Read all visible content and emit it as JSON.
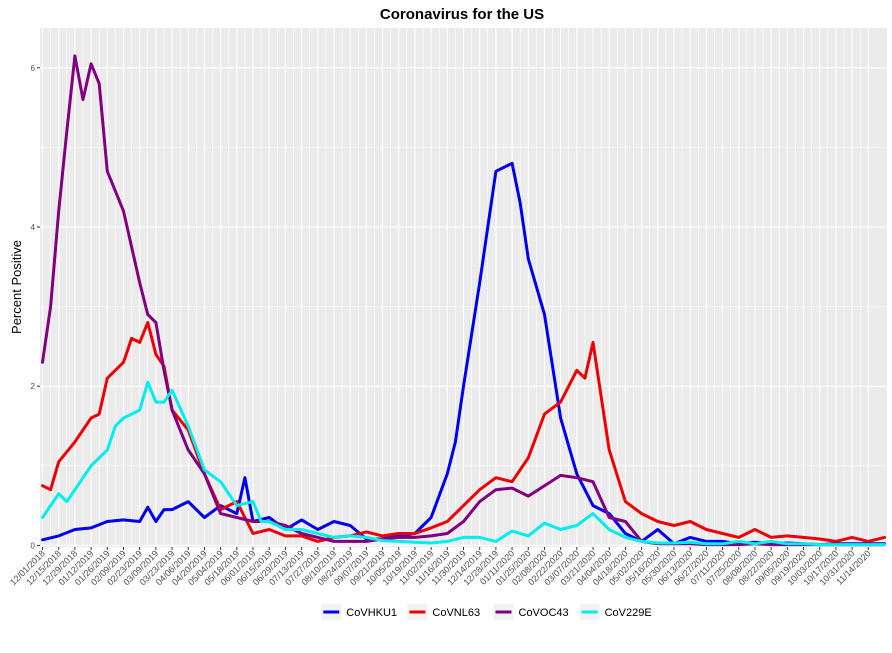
{
  "chart_data": {
    "type": "line",
    "title": "Coronavirus for the US",
    "xlabel": "",
    "ylabel": "Percent Positive",
    "ylim": [
      0,
      6.2
    ],
    "y_ticks": [
      0,
      2,
      4,
      6
    ],
    "x_start": "12/01/2018",
    "x_end": "11/28/2020",
    "x_ticks": [
      "12/01/2018",
      "12/15/2018",
      "12/29/2018",
      "01/12/2019",
      "01/26/2019",
      "02/09/2019",
      "02/23/2019",
      "03/09/2019",
      "03/23/2019",
      "04/06/2019",
      "04/20/2019",
      "05/04/2019",
      "05/18/2019",
      "06/01/2019",
      "06/15/2019",
      "06/29/2019",
      "07/13/2019",
      "07/27/2019",
      "08/10/2019",
      "08/24/2019",
      "09/07/2019",
      "09/21/2019",
      "10/05/2019",
      "10/19/2019",
      "11/02/2019",
      "11/16/2019",
      "11/30/2019",
      "12/14/2019",
      "12/28/2019",
      "01/11/2020",
      "01/25/2020",
      "02/08/2020",
      "02/22/2020",
      "03/07/2020",
      "03/21/2020",
      "04/04/2020",
      "04/18/2020",
      "05/02/2020",
      "05/16/2020",
      "05/30/2020",
      "06/13/2020",
      "06/27/2020",
      "07/11/2020",
      "07/25/2020",
      "08/08/2020",
      "08/22/2020",
      "09/05/2020",
      "09/19/2020",
      "10/03/2020",
      "10/17/2020",
      "10/31/2020",
      "11/14/2020"
    ],
    "grid": true,
    "legend_position": "bottom",
    "series": [
      {
        "name": "CoVHKU1",
        "color": "#0000ee",
        "points": [
          [
            "12/01/2018",
            0.07
          ],
          [
            "12/15/2018",
            0.12
          ],
          [
            "12/29/2018",
            0.2
          ],
          [
            "01/12/2019",
            0.22
          ],
          [
            "01/26/2019",
            0.3
          ],
          [
            "02/09/2019",
            0.32
          ],
          [
            "02/23/2019",
            0.3
          ],
          [
            "03/02/2019",
            0.48
          ],
          [
            "03/09/2019",
            0.3
          ],
          [
            "03/16/2019",
            0.45
          ],
          [
            "03/23/2019",
            0.45
          ],
          [
            "04/06/2019",
            0.55
          ],
          [
            "04/20/2019",
            0.35
          ],
          [
            "05/04/2019",
            0.5
          ],
          [
            "05/18/2019",
            0.4
          ],
          [
            "05/25/2019",
            0.85
          ],
          [
            "06/01/2019",
            0.3
          ],
          [
            "06/15/2019",
            0.35
          ],
          [
            "06/29/2019",
            0.2
          ],
          [
            "07/13/2019",
            0.32
          ],
          [
            "07/27/2019",
            0.2
          ],
          [
            "08/10/2019",
            0.3
          ],
          [
            "08/24/2019",
            0.25
          ],
          [
            "09/07/2019",
            0.08
          ],
          [
            "09/21/2019",
            0.08
          ],
          [
            "10/05/2019",
            0.12
          ],
          [
            "10/19/2019",
            0.15
          ],
          [
            "11/02/2019",
            0.35
          ],
          [
            "11/16/2019",
            0.9
          ],
          [
            "11/23/2019",
            1.3
          ],
          [
            "11/30/2019",
            2.0
          ],
          [
            "12/14/2019",
            3.3
          ],
          [
            "12/28/2019",
            4.7
          ],
          [
            "01/11/2020",
            4.8
          ],
          [
            "01/18/2020",
            4.3
          ],
          [
            "01/25/2020",
            3.6
          ],
          [
            "02/08/2020",
            2.9
          ],
          [
            "02/22/2020",
            1.6
          ],
          [
            "03/07/2020",
            0.9
          ],
          [
            "03/21/2020",
            0.5
          ],
          [
            "04/04/2020",
            0.4
          ],
          [
            "04/18/2020",
            0.15
          ],
          [
            "05/02/2020",
            0.05
          ],
          [
            "05/16/2020",
            0.2
          ],
          [
            "05/30/2020",
            0.02
          ],
          [
            "06/13/2020",
            0.1
          ],
          [
            "06/27/2020",
            0.05
          ],
          [
            "07/11/2020",
            0.05
          ],
          [
            "07/25/2020",
            0.02
          ],
          [
            "08/08/2020",
            0.04
          ],
          [
            "08/22/2020",
            0.02
          ],
          [
            "09/05/2020",
            0.03
          ],
          [
            "09/19/2020",
            0.02
          ],
          [
            "10/03/2020",
            0.01
          ],
          [
            "10/17/2020",
            0.02
          ],
          [
            "10/31/2020",
            0.02
          ],
          [
            "11/14/2020",
            0.02
          ],
          [
            "11/28/2020",
            0.02
          ]
        ]
      },
      {
        "name": "CoVNL63",
        "color": "#ee0000",
        "points": [
          [
            "12/01/2018",
            0.75
          ],
          [
            "12/08/2018",
            0.7
          ],
          [
            "12/15/2018",
            1.05
          ],
          [
            "12/29/2018",
            1.3
          ],
          [
            "01/12/2019",
            1.6
          ],
          [
            "01/19/2019",
            1.65
          ],
          [
            "01/26/2019",
            2.1
          ],
          [
            "02/09/2019",
            2.3
          ],
          [
            "02/16/2019",
            2.6
          ],
          [
            "02/23/2019",
            2.55
          ],
          [
            "03/02/2019",
            2.8
          ],
          [
            "03/09/2019",
            2.4
          ],
          [
            "03/16/2019",
            2.25
          ],
          [
            "03/23/2019",
            1.7
          ],
          [
            "04/06/2019",
            1.45
          ],
          [
            "04/20/2019",
            0.9
          ],
          [
            "05/04/2019",
            0.45
          ],
          [
            "05/18/2019",
            0.55
          ],
          [
            "06/01/2019",
            0.15
          ],
          [
            "06/15/2019",
            0.2
          ],
          [
            "06/29/2019",
            0.12
          ],
          [
            "07/13/2019",
            0.12
          ],
          [
            "07/27/2019",
            0.05
          ],
          [
            "08/10/2019",
            0.1
          ],
          [
            "08/24/2019",
            0.12
          ],
          [
            "09/07/2019",
            0.17
          ],
          [
            "09/21/2019",
            0.12
          ],
          [
            "10/05/2019",
            0.15
          ],
          [
            "10/19/2019",
            0.15
          ],
          [
            "11/02/2019",
            0.22
          ],
          [
            "11/16/2019",
            0.3
          ],
          [
            "11/30/2019",
            0.5
          ],
          [
            "12/14/2019",
            0.7
          ],
          [
            "12/28/2019",
            0.85
          ],
          [
            "01/11/2020",
            0.8
          ],
          [
            "01/25/2020",
            1.1
          ],
          [
            "02/08/2020",
            1.65
          ],
          [
            "02/22/2020",
            1.8
          ],
          [
            "03/07/2020",
            2.2
          ],
          [
            "03/14/2020",
            2.1
          ],
          [
            "03/21/2020",
            2.55
          ],
          [
            "04/04/2020",
            1.2
          ],
          [
            "04/18/2020",
            0.55
          ],
          [
            "05/02/2020",
            0.4
          ],
          [
            "05/16/2020",
            0.3
          ],
          [
            "05/30/2020",
            0.25
          ],
          [
            "06/13/2020",
            0.3
          ],
          [
            "06/27/2020",
            0.2
          ],
          [
            "07/11/2020",
            0.15
          ],
          [
            "07/25/2020",
            0.1
          ],
          [
            "08/08/2020",
            0.2
          ],
          [
            "08/22/2020",
            0.1
          ],
          [
            "09/05/2020",
            0.12
          ],
          [
            "09/19/2020",
            0.1
          ],
          [
            "10/03/2020",
            0.08
          ],
          [
            "10/17/2020",
            0.05
          ],
          [
            "10/31/2020",
            0.1
          ],
          [
            "11/14/2020",
            0.05
          ],
          [
            "11/28/2020",
            0.1
          ]
        ]
      },
      {
        "name": "CoVOC43",
        "color": "#800080",
        "points": [
          [
            "12/01/2018",
            2.3
          ],
          [
            "12/08/2018",
            3.0
          ],
          [
            "12/15/2018",
            4.2
          ],
          [
            "12/22/2018",
            5.2
          ],
          [
            "12/29/2018",
            6.15
          ],
          [
            "01/05/2019",
            5.6
          ],
          [
            "01/12/2019",
            6.05
          ],
          [
            "01/19/2019",
            5.8
          ],
          [
            "01/26/2019",
            4.7
          ],
          [
            "02/09/2019",
            4.2
          ],
          [
            "02/23/2019",
            3.3
          ],
          [
            "03/02/2019",
            2.9
          ],
          [
            "03/09/2019",
            2.8
          ],
          [
            "03/16/2019",
            2.2
          ],
          [
            "03/23/2019",
            1.7
          ],
          [
            "04/06/2019",
            1.2
          ],
          [
            "04/20/2019",
            0.9
          ],
          [
            "05/04/2019",
            0.4
          ],
          [
            "05/18/2019",
            0.35
          ],
          [
            "06/01/2019",
            0.3
          ],
          [
            "06/15/2019",
            0.3
          ],
          [
            "06/29/2019",
            0.25
          ],
          [
            "07/13/2019",
            0.15
          ],
          [
            "07/27/2019",
            0.1
          ],
          [
            "08/10/2019",
            0.05
          ],
          [
            "08/24/2019",
            0.05
          ],
          [
            "09/07/2019",
            0.05
          ],
          [
            "09/21/2019",
            0.08
          ],
          [
            "10/05/2019",
            0.1
          ],
          [
            "10/19/2019",
            0.1
          ],
          [
            "11/02/2019",
            0.12
          ],
          [
            "11/16/2019",
            0.15
          ],
          [
            "11/30/2019",
            0.3
          ],
          [
            "12/14/2019",
            0.55
          ],
          [
            "12/28/2019",
            0.7
          ],
          [
            "01/11/2020",
            0.72
          ],
          [
            "01/25/2020",
            0.62
          ],
          [
            "02/08/2020",
            0.75
          ],
          [
            "02/22/2020",
            0.88
          ],
          [
            "03/07/2020",
            0.85
          ],
          [
            "03/21/2020",
            0.8
          ],
          [
            "04/04/2020",
            0.35
          ],
          [
            "04/18/2020",
            0.3
          ],
          [
            "05/02/2020",
            0.05
          ],
          [
            "05/16/2020",
            0.02
          ],
          [
            "05/30/2020",
            0.02
          ],
          [
            "06/13/2020",
            0.02
          ],
          [
            "06/27/2020",
            0.01
          ],
          [
            "07/11/2020",
            0.01
          ],
          [
            "07/25/2020",
            0.01
          ],
          [
            "08/08/2020",
            0.02
          ],
          [
            "08/22/2020",
            0.01
          ],
          [
            "09/05/2020",
            0.01
          ],
          [
            "09/19/2020",
            0.01
          ],
          [
            "10/03/2020",
            0.01
          ],
          [
            "10/17/2020",
            0.01
          ],
          [
            "10/31/2020",
            0.01
          ],
          [
            "11/14/2020",
            0.01
          ],
          [
            "11/28/2020",
            0.01
          ]
        ]
      },
      {
        "name": "CoV229E",
        "color": "#00eeee",
        "points": [
          [
            "12/01/2018",
            0.35
          ],
          [
            "12/15/2018",
            0.65
          ],
          [
            "12/22/2018",
            0.55
          ],
          [
            "12/29/2018",
            0.7
          ],
          [
            "01/12/2019",
            1.0
          ],
          [
            "01/26/2019",
            1.2
          ],
          [
            "02/02/2019",
            1.5
          ],
          [
            "02/09/2019",
            1.6
          ],
          [
            "02/23/2019",
            1.7
          ],
          [
            "03/02/2019",
            2.05
          ],
          [
            "03/09/2019",
            1.8
          ],
          [
            "03/16/2019",
            1.8
          ],
          [
            "03/23/2019",
            1.95
          ],
          [
            "04/06/2019",
            1.5
          ],
          [
            "04/20/2019",
            0.95
          ],
          [
            "05/04/2019",
            0.8
          ],
          [
            "05/18/2019",
            0.5
          ],
          [
            "06/01/2019",
            0.55
          ],
          [
            "06/08/2019",
            0.3
          ],
          [
            "06/15/2019",
            0.3
          ],
          [
            "06/29/2019",
            0.2
          ],
          [
            "07/13/2019",
            0.2
          ],
          [
            "07/27/2019",
            0.15
          ],
          [
            "08/10/2019",
            0.1
          ],
          [
            "08/24/2019",
            0.12
          ],
          [
            "09/07/2019",
            0.1
          ],
          [
            "09/21/2019",
            0.06
          ],
          [
            "10/05/2019",
            0.05
          ],
          [
            "10/19/2019",
            0.04
          ],
          [
            "11/02/2019",
            0.03
          ],
          [
            "11/16/2019",
            0.05
          ],
          [
            "11/30/2019",
            0.1
          ],
          [
            "12/14/2019",
            0.1
          ],
          [
            "12/28/2019",
            0.05
          ],
          [
            "01/11/2020",
            0.18
          ],
          [
            "01/25/2020",
            0.12
          ],
          [
            "02/08/2020",
            0.28
          ],
          [
            "02/22/2020",
            0.2
          ],
          [
            "03/07/2020",
            0.25
          ],
          [
            "03/21/2020",
            0.4
          ],
          [
            "04/04/2020",
            0.2
          ],
          [
            "04/18/2020",
            0.1
          ],
          [
            "05/02/2020",
            0.05
          ],
          [
            "05/16/2020",
            0.03
          ],
          [
            "05/30/2020",
            0.03
          ],
          [
            "06/13/2020",
            0.04
          ],
          [
            "06/27/2020",
            0.02
          ],
          [
            "07/11/2020",
            0.02
          ],
          [
            "07/25/2020",
            0.05
          ],
          [
            "08/08/2020",
            0.02
          ],
          [
            "08/22/2020",
            0.05
          ],
          [
            "09/05/2020",
            0.02
          ],
          [
            "09/19/2020",
            0.02
          ],
          [
            "10/03/2020",
            0.01
          ],
          [
            "10/17/2020",
            0.01
          ],
          [
            "10/31/2020",
            0.01
          ],
          [
            "11/14/2020",
            0.01
          ],
          [
            "11/28/2020",
            0.01
          ]
        ]
      }
    ]
  }
}
